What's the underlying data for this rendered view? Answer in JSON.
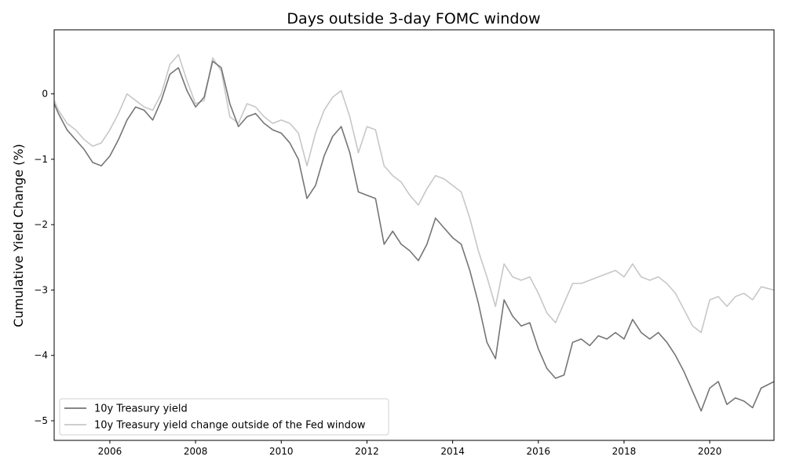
{
  "chart_data": {
    "type": "line",
    "title": "Days outside 3-day FOMC window",
    "xlabel": "",
    "ylabel": "Cumulative Yield Change (%)",
    "xlim": [
      2004.7,
      2021.5
    ],
    "ylim": [
      -5.3,
      0.98
    ],
    "x_ticks": [
      2006,
      2008,
      2010,
      2012,
      2014,
      2016,
      2018,
      2020
    ],
    "y_ticks": [
      0,
      -1,
      -2,
      -3,
      -4,
      -5
    ],
    "x_tick_labels": [
      "2006",
      "2008",
      "2010",
      "2012",
      "2014",
      "2016",
      "2018",
      "2020"
    ],
    "y_tick_labels": [
      "0",
      "−1",
      "−2",
      "−3",
      "−4",
      "−5"
    ],
    "grid": false,
    "legend_position": "lower-left",
    "series": [
      {
        "name": "10y Treasury yield",
        "color": "#757575",
        "x": [
          2004.7,
          2004.8,
          2005.0,
          2005.2,
          2005.4,
          2005.6,
          2005.8,
          2006.0,
          2006.2,
          2006.4,
          2006.6,
          2006.8,
          2007.0,
          2007.2,
          2007.4,
          2007.6,
          2007.8,
          2008.0,
          2008.2,
          2008.4,
          2008.6,
          2008.8,
          2009.0,
          2009.2,
          2009.4,
          2009.6,
          2009.8,
          2010.0,
          2010.2,
          2010.4,
          2010.6,
          2010.8,
          2011.0,
          2011.2,
          2011.4,
          2011.6,
          2011.8,
          2012.0,
          2012.2,
          2012.4,
          2012.6,
          2012.8,
          2013.0,
          2013.2,
          2013.4,
          2013.6,
          2013.8,
          2014.0,
          2014.2,
          2014.4,
          2014.6,
          2014.8,
          2015.0,
          2015.2,
          2015.4,
          2015.6,
          2015.8,
          2016.0,
          2016.2,
          2016.4,
          2016.6,
          2016.8,
          2017.0,
          2017.2,
          2017.4,
          2017.6,
          2017.8,
          2018.0,
          2018.2,
          2018.4,
          2018.6,
          2018.8,
          2019.0,
          2019.2,
          2019.4,
          2019.6,
          2019.8,
          2020.0,
          2020.2,
          2020.4,
          2020.6,
          2020.8,
          2021.0,
          2021.2,
          2021.5
        ],
        "y": [
          -0.15,
          -0.3,
          -0.55,
          -0.7,
          -0.85,
          -1.05,
          -1.1,
          -0.95,
          -0.7,
          -0.4,
          -0.2,
          -0.25,
          -0.4,
          -0.1,
          0.3,
          0.4,
          0.05,
          -0.2,
          -0.05,
          0.5,
          0.4,
          -0.15,
          -0.5,
          -0.35,
          -0.3,
          -0.45,
          -0.55,
          -0.6,
          -0.75,
          -1.0,
          -1.6,
          -1.4,
          -0.95,
          -0.65,
          -0.5,
          -0.9,
          -1.5,
          -1.55,
          -1.6,
          -2.3,
          -2.1,
          -2.3,
          -2.4,
          -2.55,
          -2.3,
          -1.9,
          -2.05,
          -2.2,
          -2.3,
          -2.7,
          -3.2,
          -3.8,
          -4.05,
          -3.15,
          -3.4,
          -3.55,
          -3.5,
          -3.9,
          -4.2,
          -4.35,
          -4.3,
          -3.8,
          -3.75,
          -3.85,
          -3.7,
          -3.75,
          -3.65,
          -3.75,
          -3.45,
          -3.65,
          -3.75,
          -3.65,
          -3.8,
          -4.0,
          -4.25,
          -4.55,
          -4.85,
          -4.5,
          -4.4,
          -4.75,
          -4.65,
          -4.7,
          -4.8,
          -4.5,
          -4.4
        ]
      },
      {
        "name": "10y Treasury yield change outside of the Fed window",
        "color": "#c7c7c7",
        "x": [
          2004.7,
          2004.8,
          2005.0,
          2005.2,
          2005.4,
          2005.6,
          2005.8,
          2006.0,
          2006.2,
          2006.4,
          2006.6,
          2006.8,
          2007.0,
          2007.2,
          2007.4,
          2007.6,
          2007.8,
          2008.0,
          2008.2,
          2008.4,
          2008.6,
          2008.8,
          2009.0,
          2009.2,
          2009.4,
          2009.6,
          2009.8,
          2010.0,
          2010.2,
          2010.4,
          2010.6,
          2010.8,
          2011.0,
          2011.2,
          2011.4,
          2011.6,
          2011.8,
          2012.0,
          2012.2,
          2012.4,
          2012.6,
          2012.8,
          2013.0,
          2013.2,
          2013.4,
          2013.6,
          2013.8,
          2014.0,
          2014.2,
          2014.4,
          2014.6,
          2014.8,
          2015.0,
          2015.2,
          2015.4,
          2015.6,
          2015.8,
          2016.0,
          2016.2,
          2016.4,
          2016.6,
          2016.8,
          2017.0,
          2017.2,
          2017.4,
          2017.6,
          2017.8,
          2018.0,
          2018.2,
          2018.4,
          2018.6,
          2018.8,
          2019.0,
          2019.2,
          2019.4,
          2019.6,
          2019.8,
          2020.0,
          2020.2,
          2020.4,
          2020.6,
          2020.8,
          2021.0,
          2021.2,
          2021.5
        ],
        "y": [
          -0.1,
          -0.25,
          -0.45,
          -0.55,
          -0.7,
          -0.8,
          -0.75,
          -0.55,
          -0.3,
          0.0,
          -0.1,
          -0.2,
          -0.25,
          0.0,
          0.45,
          0.6,
          0.2,
          -0.15,
          -0.1,
          0.55,
          0.35,
          -0.35,
          -0.45,
          -0.15,
          -0.2,
          -0.35,
          -0.45,
          -0.4,
          -0.45,
          -0.6,
          -1.1,
          -0.6,
          -0.25,
          -0.05,
          0.05,
          -0.35,
          -0.9,
          -0.5,
          -0.55,
          -1.1,
          -1.25,
          -1.35,
          -1.55,
          -1.7,
          -1.45,
          -1.25,
          -1.3,
          -1.4,
          -1.5,
          -1.9,
          -2.4,
          -2.8,
          -3.25,
          -2.6,
          -2.8,
          -2.85,
          -2.8,
          -3.05,
          -3.35,
          -3.5,
          -3.2,
          -2.9,
          -2.9,
          -2.85,
          -2.8,
          -2.75,
          -2.7,
          -2.8,
          -2.6,
          -2.8,
          -2.85,
          -2.8,
          -2.9,
          -3.05,
          -3.3,
          -3.55,
          -3.65,
          -3.15,
          -3.1,
          -3.25,
          -3.1,
          -3.05,
          -3.15,
          -2.95,
          -3.0
        ]
      }
    ]
  }
}
